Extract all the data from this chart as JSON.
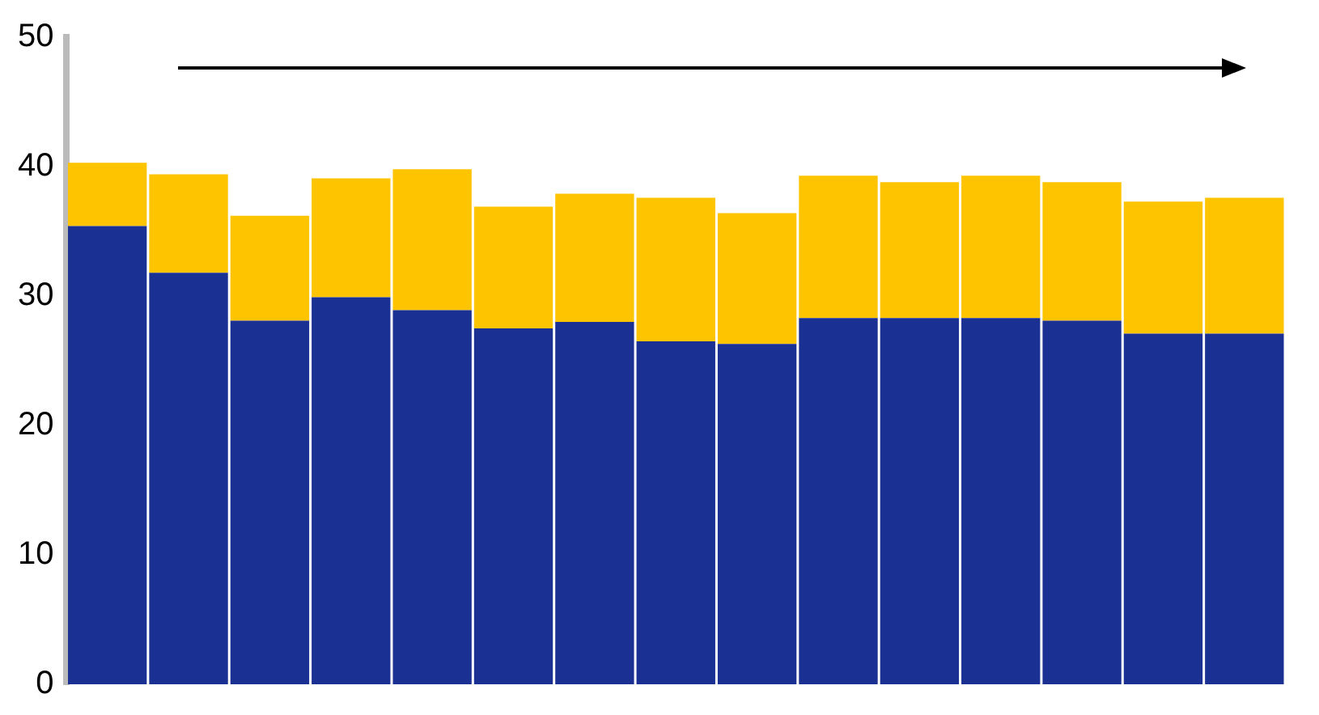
{
  "chart_data": {
    "type": "bar",
    "stacked": true,
    "categories": [
      null,
      null,
      null,
      null,
      null,
      null,
      null,
      null,
      null,
      null,
      null,
      null,
      null,
      null,
      null
    ],
    "series": [
      {
        "color": "#1a3093",
        "values": [
          35.4,
          31.8,
          28.1,
          29.9,
          28.9,
          27.5,
          28,
          26.5,
          26.3,
          28.3,
          28.3,
          28.3,
          28.1,
          27.1,
          27.1
        ]
      },
      {
        "color": "#ffc400",
        "values": [
          4.9,
          7.6,
          8.1,
          9.2,
          10.9,
          9.4,
          9.9,
          11.1,
          10.1,
          11,
          10.5,
          11,
          10.7,
          10.2,
          10.5
        ]
      }
    ],
    "ylim": [
      0,
      50
    ],
    "yticks": [
      0,
      10,
      20,
      30,
      40,
      50
    ],
    "grid": false,
    "legend": false
  }
}
